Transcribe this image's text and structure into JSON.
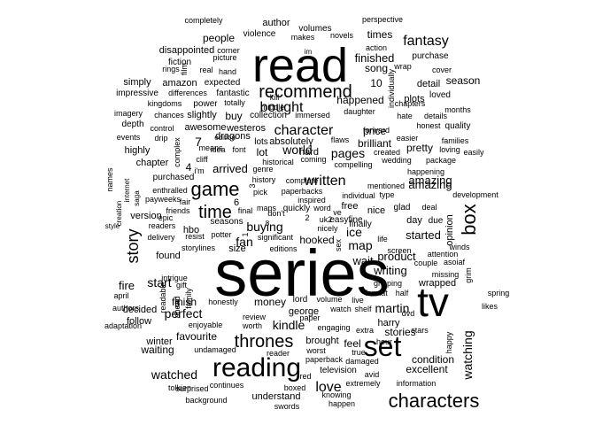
{
  "words": [
    "series",
    "read",
    "tv",
    "set",
    "reading",
    "characters",
    "game",
    "thrones",
    "box",
    "recommend",
    "time",
    "story",
    "fantasy",
    "character",
    "written",
    "bought",
    "love",
    "watched",
    "world",
    "pages",
    "buying",
    "kindle",
    "ice",
    "map",
    "watching",
    "fan",
    "arrived",
    "start",
    "fire",
    "martin",
    "amazing",
    "writing",
    "started",
    "product",
    "condition",
    "excellent",
    "perfect",
    "finish",
    "stories",
    "season",
    "finished",
    "times",
    "song",
    "volumes",
    "author",
    "people",
    "detail",
    "price",
    "plots",
    "loved",
    "brilliant",
    "lot",
    "hard",
    "absolutely",
    "wait",
    "opinion",
    "harry",
    "george",
    "waiting",
    "follow",
    "winter",
    "decided",
    "found",
    "hbo",
    "version",
    "chapter",
    "simply",
    "amazon",
    "highly",
    "disappointed",
    "fiction",
    "completely",
    "perspective",
    "violence",
    "novels",
    "makes",
    "action",
    "purchase",
    "wrap",
    "cover",
    "months",
    "quality",
    "depth",
    "events",
    "imagery",
    "impressive",
    "kingdoms",
    "power",
    "fantastic",
    "expected",
    "differences",
    "real",
    "rings",
    "hand",
    "picture",
    "corner",
    "film",
    "westeros",
    "dragons",
    "means",
    "lots",
    "buy",
    "awesome",
    "control",
    "drip",
    "complex",
    "slightly",
    "chances",
    "collection",
    "immersed",
    "middle",
    "totally",
    "kill",
    "happened",
    "individually",
    "chapters",
    "hate",
    "details",
    "daughter",
    "forward",
    "honest",
    "pretty",
    "families",
    "loving",
    "easily",
    "happening",
    "package",
    "wedding",
    "created",
    "easier",
    "flaws",
    "compelling",
    "coming",
    "historical",
    "genre",
    "history",
    "idea",
    "font",
    "edition",
    "cliff",
    "purchased",
    "enthralled",
    "names",
    "internet",
    "creation",
    "saga",
    "epic",
    "payweeks",
    "fair",
    "friends",
    "readers",
    "style",
    "delivery",
    "resist",
    "potter",
    "seasons",
    "final",
    "maps",
    "quickly",
    "word",
    "pick",
    "paperbacks",
    "complete",
    "inspired",
    "individual",
    "type",
    "easyfine",
    "uk2",
    "free",
    "nice",
    "glad",
    "deal",
    "day",
    "due",
    "finally",
    "development",
    "mentioned",
    "amazing",
    "hooked",
    "significant",
    "editions",
    "storylines",
    "size",
    "nicely",
    "sex",
    "screen",
    "couple",
    "asoiaf",
    "attention",
    "winds",
    "missing",
    "wrapped",
    "grim",
    "gripping",
    "half",
    "format",
    "april",
    "authors",
    "intrigue",
    "gift",
    "readable",
    "ahead",
    "family",
    "honestly",
    "enjoyable",
    "money",
    "review",
    "worth",
    "lord",
    "volume",
    "live",
    "paper",
    "watch",
    "shelf",
    "dvd",
    "hour",
    "stars",
    "happy",
    "likes",
    "spring",
    "adaptation",
    "favourite",
    "undamaged",
    "reader",
    "brought",
    "engaging",
    "extra",
    "feel",
    "worst",
    "paperback",
    "damaged",
    "true",
    "tolkien",
    "avid",
    "television",
    "extremely",
    "information",
    "boxed",
    "continues",
    "surprised",
    "background",
    "swords",
    "understand",
    "knowing",
    "happen",
    "red",
    "life",
    "10",
    "7",
    "4",
    "5",
    "6",
    "i'm",
    "im",
    "1",
    "2",
    "3",
    "8",
    "ve",
    "don't"
  ]
}
